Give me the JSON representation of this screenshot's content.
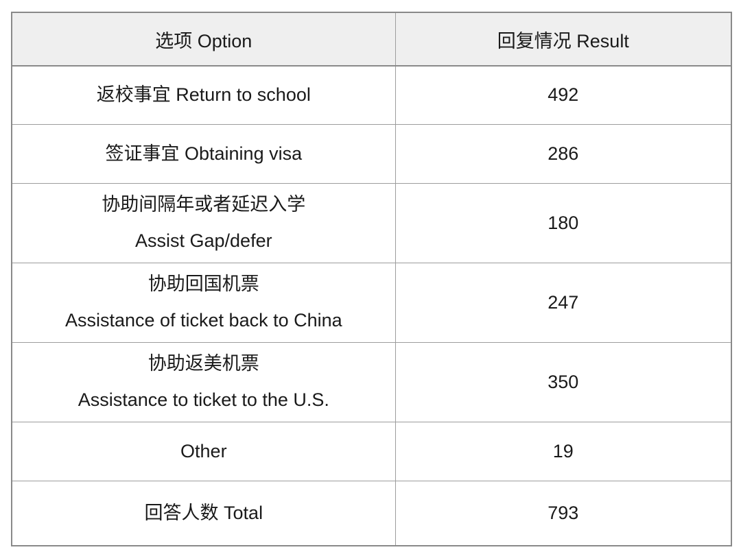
{
  "page": {
    "background": "#ffffff"
  },
  "colors": {
    "header_bg": "#efefef",
    "border_outer": "#898989",
    "border_inner": "#9c9c9c",
    "text": "#1a1a1a"
  },
  "table": {
    "header": {
      "option": "选项 Option",
      "result": "回复情况 Result"
    },
    "rows": [
      {
        "option_lines": [
          "返校事宜 Return to school"
        ],
        "result": "492"
      },
      {
        "option_lines": [
          "签证事宜 Obtaining visa"
        ],
        "result": "286"
      },
      {
        "option_lines": [
          "协助间隔年或者延迟入学",
          "Assist Gap/defer"
        ],
        "result": "180"
      },
      {
        "option_lines": [
          "协助回国机票",
          "Assistance of ticket back to China"
        ],
        "result": "247"
      },
      {
        "option_lines": [
          "协助返美机票",
          "Assistance to ticket to the U.S."
        ],
        "result": "350"
      },
      {
        "option_lines": [
          "Other"
        ],
        "result": "19"
      },
      {
        "option_lines": [
          "回答人数 Total"
        ],
        "result": "793"
      }
    ]
  },
  "chart_data": {
    "type": "table",
    "title": "",
    "columns": [
      "选项 Option",
      "回复情况 Result"
    ],
    "categories": [
      "返校事宜 Return to school",
      "签证事宜 Obtaining visa",
      "协助间隔年或者延迟入学 Assist Gap/defer",
      "协助回国机票 Assistance of ticket back to China",
      "协助返美机票 Assistance to ticket to the U.S.",
      "Other",
      "回答人数 Total"
    ],
    "values": [
      492,
      286,
      180,
      247,
      350,
      19,
      793
    ],
    "layout": {
      "grid": true,
      "header_row": true,
      "columns_count": 2
    }
  }
}
